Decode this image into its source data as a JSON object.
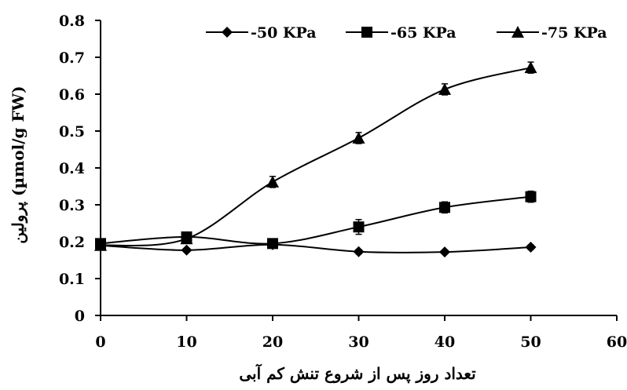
{
  "chart_data": {
    "type": "line",
    "xlabel": "تعداد روز پس از شروع تنش کم آبی",
    "ylabel": "پرولین (µmol/g FW)",
    "xlim": [
      0,
      60
    ],
    "ylim": [
      0,
      0.8
    ],
    "xticks": [
      0,
      10,
      20,
      30,
      40,
      50,
      60
    ],
    "yticks": [
      0,
      0.1,
      0.2,
      0.3,
      0.4,
      0.5,
      0.6,
      0.7,
      0.8
    ],
    "xtick_labels": [
      "0",
      "10",
      "20",
      "30",
      "40",
      "50",
      "60"
    ],
    "ytick_labels": [
      "0",
      "0.1",
      "0.2",
      "0.3",
      "0.4",
      "0.5",
      "0.6",
      "0.7",
      "0.8"
    ],
    "grid": false,
    "legend_position": "top",
    "x": [
      0,
      10,
      20,
      30,
      40,
      50
    ],
    "series": [
      {
        "name": "-50 KPa",
        "marker": "diamond",
        "values": [
          0.19,
          0.177,
          0.192,
          0.173,
          0.172,
          0.185
        ],
        "errors": [
          0.005,
          0.005,
          0.005,
          0.006,
          0.005,
          0.006
        ]
      },
      {
        "name": "-65 KPa",
        "marker": "square",
        "values": [
          0.195,
          0.213,
          0.195,
          0.24,
          0.293,
          0.322
        ],
        "errors": [
          0.012,
          0.012,
          0.012,
          0.02,
          0.015,
          0.015
        ]
      },
      {
        "name": "-75 KPa",
        "marker": "triangle",
        "values": [
          0.19,
          0.208,
          0.362,
          0.481,
          0.613,
          0.672
        ],
        "errors": [
          0.01,
          0.012,
          0.015,
          0.015,
          0.015,
          0.015
        ]
      }
    ]
  }
}
